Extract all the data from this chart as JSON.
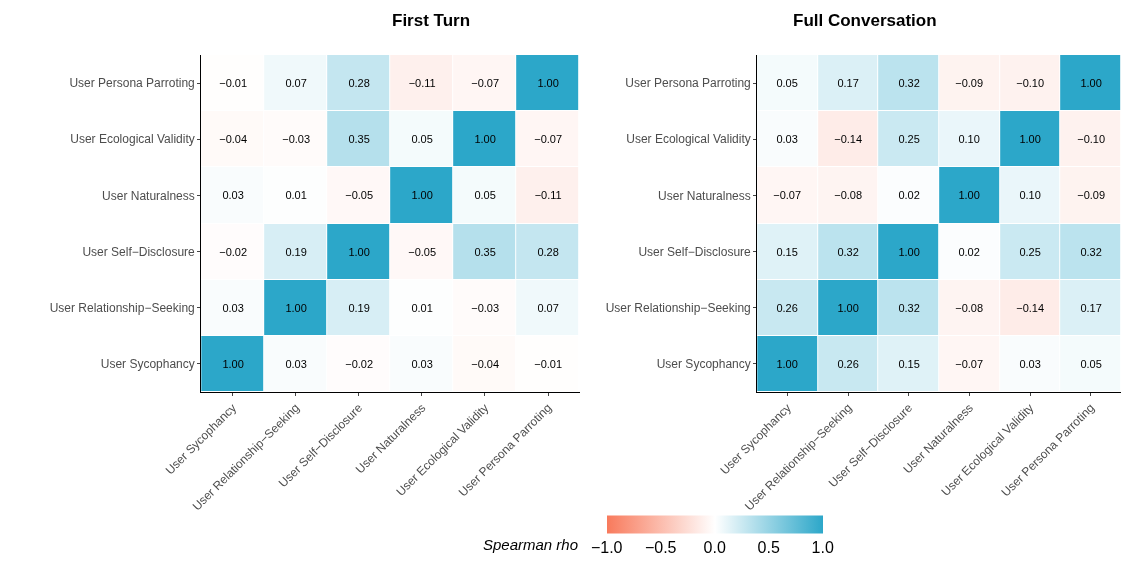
{
  "chart_data": [
    {
      "type": "heatmap",
      "title": "First Turn",
      "categories": [
        "User Sycophancy",
        "User Relationship−Seeking",
        "User Self−Disclosure",
        "User Naturalness",
        "User Ecological Validity",
        "User Persona Parroting"
      ],
      "y_categories": [
        "User Persona Parroting",
        "User Ecological Validity",
        "User Naturalness",
        "User Self−Disclosure",
        "User Relationship−Seeking",
        "User Sycophancy"
      ],
      "cells": [
        [
          -0.01,
          0.07,
          0.28,
          -0.11,
          -0.07,
          1.0
        ],
        [
          -0.04,
          -0.03,
          0.35,
          0.05,
          1.0,
          -0.07
        ],
        [
          0.03,
          0.01,
          -0.05,
          1.0,
          0.05,
          -0.11
        ],
        [
          -0.02,
          0.19,
          1.0,
          -0.05,
          0.35,
          0.28
        ],
        [
          0.03,
          1.0,
          0.19,
          0.01,
          -0.03,
          0.07
        ],
        [
          1.0,
          0.03,
          -0.02,
          0.03,
          -0.04,
          -0.01
        ]
      ],
      "cell_labels": [
        [
          "−0.01",
          "0.07",
          "0.28",
          "−0.11",
          "−0.07",
          "1.00"
        ],
        [
          "−0.04",
          "−0.03",
          "0.35",
          "0.05",
          "1.00",
          "−0.07"
        ],
        [
          "0.03",
          "0.01",
          "−0.05",
          "1.00",
          "0.05",
          "−0.11"
        ],
        [
          "−0.02",
          "0.19",
          "1.00",
          "−0.05",
          "0.35",
          "0.28"
        ],
        [
          "0.03",
          "1.00",
          "0.19",
          "0.01",
          "−0.03",
          "0.07"
        ],
        [
          "1.00",
          "0.03",
          "−0.02",
          "0.03",
          "−0.04",
          "−0.01"
        ]
      ],
      "clabel": "Spearman rho",
      "clim": [
        -1,
        1
      ],
      "cticks": [
        {
          "value": -1,
          "label": "−1.0"
        },
        {
          "value": -0.5,
          "label": "−0.5"
        },
        {
          "value": 0,
          "label": "0.0"
        },
        {
          "value": 0.5,
          "label": "0.5"
        },
        {
          "value": 1,
          "label": "1.0"
        }
      ]
    },
    {
      "type": "heatmap",
      "title": "Full Conversation",
      "categories": [
        "User Sycophancy",
        "User Relationship−Seeking",
        "User Self−Disclosure",
        "User Naturalness",
        "User Ecological Validity",
        "User Persona Parroting"
      ],
      "y_categories": [
        "User Persona Parroting",
        "User Ecological Validity",
        "User Naturalness",
        "User Self−Disclosure",
        "User Relationship−Seeking",
        "User Sycophancy"
      ],
      "cells": [
        [
          0.05,
          0.17,
          0.32,
          -0.09,
          -0.1,
          1.0
        ],
        [
          0.03,
          -0.14,
          0.25,
          0.1,
          1.0,
          -0.1
        ],
        [
          -0.07,
          -0.08,
          0.02,
          1.0,
          0.1,
          -0.09
        ],
        [
          0.15,
          0.32,
          1.0,
          0.02,
          0.25,
          0.32
        ],
        [
          0.26,
          1.0,
          0.32,
          -0.08,
          -0.14,
          0.17
        ],
        [
          1.0,
          0.26,
          0.15,
          -0.07,
          0.03,
          0.05
        ]
      ],
      "cell_labels": [
        [
          "0.05",
          "0.17",
          "0.32",
          "−0.09",
          "−0.10",
          "1.00"
        ],
        [
          "0.03",
          "−0.14",
          "0.25",
          "0.10",
          "1.00",
          "−0.10"
        ],
        [
          "−0.07",
          "−0.08",
          "0.02",
          "1.00",
          "0.10",
          "−0.09"
        ],
        [
          "0.15",
          "0.32",
          "1.00",
          "0.02",
          "0.25",
          "0.32"
        ],
        [
          "0.26",
          "1.00",
          "0.32",
          "−0.08",
          "−0.14",
          "0.17"
        ],
        [
          "1.00",
          "0.26",
          "0.15",
          "−0.07",
          "0.03",
          "0.05"
        ]
      ]
    }
  ]
}
